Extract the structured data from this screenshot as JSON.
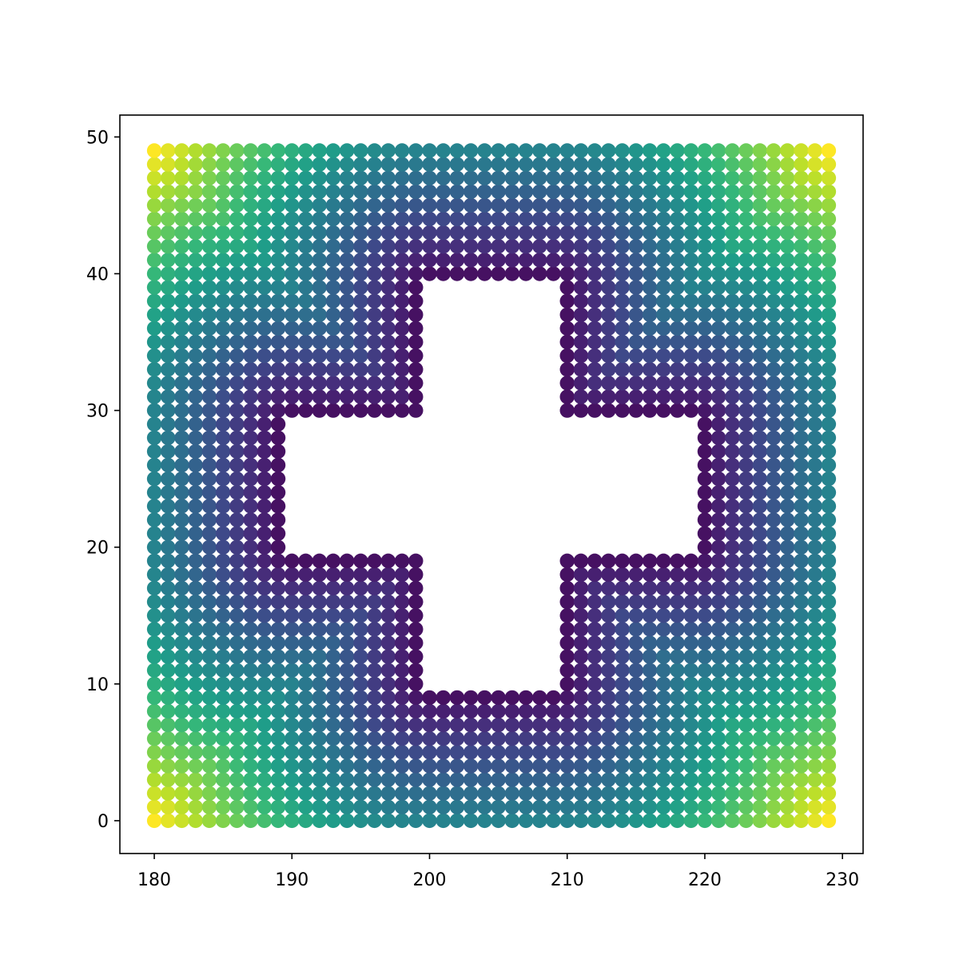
{
  "chart_data": {
    "type": "scatter",
    "title": "",
    "xlabel": "",
    "ylabel": "",
    "xlim": [
      177.5,
      231.5
    ],
    "ylim": [
      -2.4,
      51.6
    ],
    "xticks": [
      180,
      190,
      200,
      210,
      220,
      230
    ],
    "yticks": [
      0,
      10,
      20,
      30,
      40,
      50
    ],
    "xtick_labels": [
      "180",
      "190",
      "200",
      "210",
      "220",
      "230"
    ],
    "ytick_labels": [
      "0",
      "10",
      "20",
      "30",
      "40",
      "50"
    ],
    "grid": false,
    "legend": "none",
    "colormap": "viridis",
    "colormap_stops": [
      "#440154",
      "#482878",
      "#3e4989",
      "#31688e",
      "#26828e",
      "#1f9e89",
      "#35b779",
      "#6ece58",
      "#b5de2b",
      "#fde725"
    ],
    "x_range": [
      180,
      229
    ],
    "y_range": [
      0,
      49
    ],
    "x_step": 1,
    "y_step": 1,
    "excluded_region": "cross",
    "excluded_cross": {
      "vertical_bar": {
        "x": [
          200,
          209
        ],
        "y": [
          10,
          39
        ]
      },
      "horizontal_bar": {
        "x": [
          190,
          219
        ],
        "y": [
          20,
          29
        ]
      }
    },
    "color_value": "normalized distance from the cross-shaped hole (0 at the hole edge, 1 at the farthest corner)",
    "marker_color_at_hole_edge": "#440154",
    "marker_color_at_bottom_right_corner": "#fde725"
  }
}
